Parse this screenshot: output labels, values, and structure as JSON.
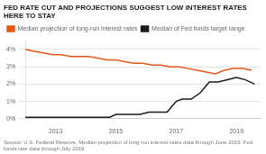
{
  "chart_data": {
    "type": "line",
    "title": "FED RATE CUT AND PROJECTIONS SUGGEST LOW INTEREST RATES HERE TO STAY",
    "annotations": [
      "Source: U.S. Federal Reserve. Median projection of long-run interest rates data through June 2019. Fed funds rate data through July 2019."
    ],
    "series": [
      {
        "name": "Median projection of long-run interest rates",
        "color": "#E8571A",
        "x": [
          2012.0,
          2012.3,
          2012.6,
          2012.9,
          2013.2,
          2013.5,
          2013.8,
          2014.1,
          2014.4,
          2014.7,
          2015.0,
          2015.3,
          2015.6,
          2015.9,
          2016.2,
          2016.5,
          2016.8,
          2017.1,
          2017.4,
          2017.7,
          2018.0,
          2018.3,
          2018.6,
          2018.9,
          2019.2,
          2019.5
        ],
        "values": [
          0.04,
          0.039,
          0.038,
          0.037,
          0.037,
          0.036,
          0.036,
          0.036,
          0.035,
          0.034,
          0.034,
          0.033,
          0.032,
          0.032,
          0.031,
          0.031,
          0.03,
          0.03,
          0.029,
          0.028,
          0.027,
          0.026,
          0.028,
          0.029,
          0.029,
          0.028
        ]
      },
      {
        "name": "Median of Fed funds target range",
        "color": "#1a1a1a",
        "x": [
          2012.0,
          2012.5,
          2013.0,
          2013.5,
          2014.0,
          2014.8,
          2015.0,
          2015.2,
          2015.5,
          2015.8,
          2016.1,
          2016.4,
          2016.7,
          2017.0,
          2017.2,
          2017.5,
          2017.8,
          2018.1,
          2018.4,
          2018.7,
          2019.0,
          2019.3,
          2019.6
        ],
        "values": [
          0.0008,
          0.0008,
          0.0008,
          0.0008,
          0.0008,
          0.0008,
          0.0025,
          0.0025,
          0.0025,
          0.0025,
          0.0038,
          0.0038,
          0.0038,
          0.01,
          0.0113,
          0.0113,
          0.015,
          0.0213,
          0.0213,
          0.0225,
          0.0238,
          0.0225,
          0.02
        ]
      }
    ],
    "xlim": [
      2012.0,
      2019.8
    ],
    "xticks": [
      2013,
      2015,
      2017,
      2019
    ],
    "ylim": [
      0,
      0.045
    ],
    "yticks": [
      {
        "value": 0.0,
        "label": "0%"
      },
      {
        "value": 0.01,
        "label": "1%"
      },
      {
        "value": 0.02,
        "label": "2%"
      },
      {
        "value": 0.03,
        "label": "3%"
      },
      {
        "value": 0.04,
        "label": "4%"
      }
    ],
    "grid": true,
    "legend": "top"
  }
}
